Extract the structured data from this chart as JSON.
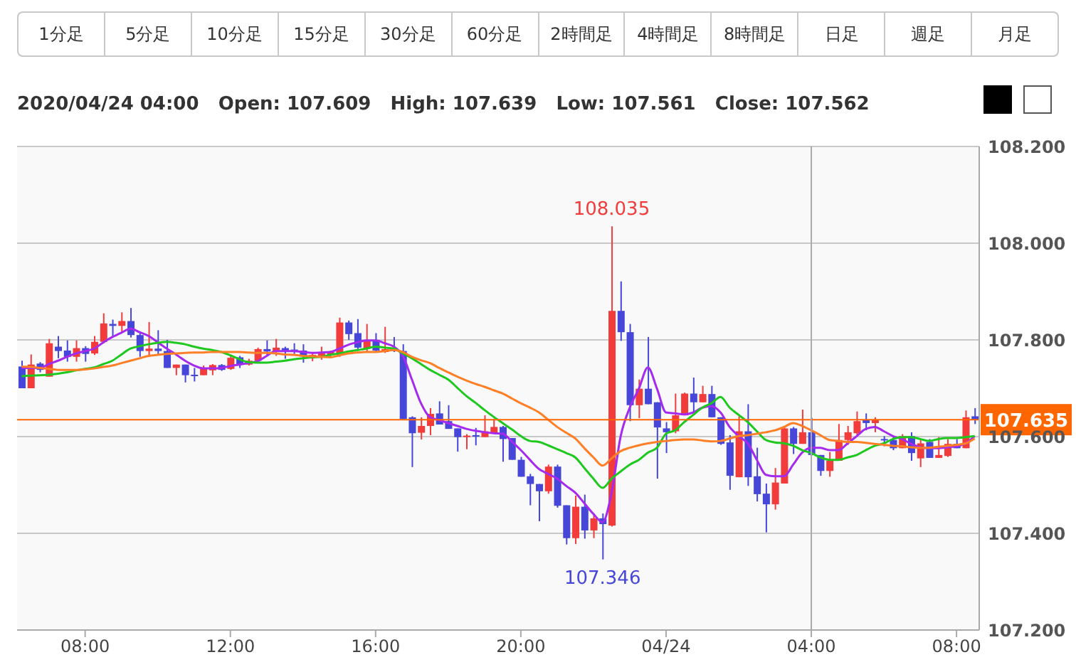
{
  "chart_data": {
    "type": "candlestick",
    "subtitle": "2020/04/24 04:00   Open: 107.609   High: 107.639   Low: 107.561   Close: 107.562",
    "annotations": [
      "1分足",
      "5分足",
      "10分足",
      "15分足",
      "30分足",
      "60分足",
      "2時間足",
      "4時間足",
      "8時間足",
      "日足",
      "週足",
      "月足",
      {
        "text": "108.035",
        "y": 108.035
      },
      {
        "text": "107.346",
        "y": 107.346
      }
    ],
    "categories": [
      null,
      null,
      null,
      null,
      null,
      null,
      null,
      "08:00",
      null,
      null,
      null,
      null,
      null,
      null,
      null,
      null,
      null,
      null,
      null,
      null,
      null,
      null,
      null,
      "12:00",
      null,
      null,
      null,
      null,
      null,
      null,
      null,
      null,
      null,
      null,
      null,
      null,
      null,
      null,
      null,
      "16:00",
      null,
      null,
      null,
      null,
      null,
      null,
      null,
      null,
      null,
      null,
      null,
      null,
      null,
      null,
      null,
      "20:00",
      null,
      null,
      null,
      null,
      null,
      null,
      null,
      null,
      null,
      null,
      null,
      null,
      null,
      null,
      null,
      "04/24",
      null,
      null,
      null,
      null,
      null,
      null,
      null,
      null,
      null,
      null,
      null,
      null,
      null,
      null,
      null,
      "04:00",
      null,
      null,
      null,
      null,
      null,
      null,
      null,
      null,
      null,
      null,
      null,
      null,
      null,
      null,
      null,
      "08:00",
      null,
      null
    ],
    "ohlc": [
      [
        107.745,
        107.757,
        107.7,
        107.7
      ],
      [
        107.7,
        107.77,
        107.7,
        107.749
      ],
      [
        107.751,
        107.754,
        107.733,
        107.738
      ],
      [
        107.724,
        107.802,
        107.724,
        107.793
      ],
      [
        107.786,
        107.808,
        107.762,
        107.777
      ],
      [
        107.778,
        107.799,
        107.755,
        107.765
      ],
      [
        107.765,
        107.799,
        107.755,
        107.783
      ],
      [
        107.783,
        107.787,
        107.755,
        107.771
      ],
      [
        107.772,
        107.808,
        107.769,
        107.796
      ],
      [
        107.796,
        107.855,
        107.793,
        107.834
      ],
      [
        107.833,
        107.842,
        107.808,
        107.829
      ],
      [
        107.829,
        107.857,
        107.816,
        107.839
      ],
      [
        107.839,
        107.866,
        107.805,
        107.81
      ],
      [
        107.81,
        107.814,
        107.765,
        107.777
      ],
      [
        107.777,
        107.837,
        107.765,
        107.782
      ],
      [
        107.782,
        107.82,
        107.769,
        107.777
      ],
      [
        107.777,
        107.8,
        107.742,
        107.742
      ],
      [
        107.742,
        107.749,
        107.727,
        107.749
      ],
      [
        107.749,
        107.749,
        107.712,
        107.727
      ],
      [
        107.728,
        107.742,
        107.714,
        107.726
      ],
      [
        107.727,
        107.747,
        107.727,
        107.741
      ],
      [
        107.737,
        107.75,
        107.727,
        107.748
      ],
      [
        107.748,
        107.75,
        107.736,
        107.738
      ],
      [
        107.74,
        107.767,
        107.738,
        107.763
      ],
      [
        107.764,
        107.767,
        107.742,
        107.749
      ],
      [
        107.749,
        107.761,
        107.747,
        107.757
      ],
      [
        107.757,
        107.784,
        107.757,
        107.781
      ],
      [
        107.781,
        107.799,
        107.769,
        107.776
      ],
      [
        107.776,
        107.802,
        107.767,
        107.784
      ],
      [
        107.783,
        107.786,
        107.761,
        107.778
      ],
      [
        107.78,
        107.793,
        107.771,
        107.776
      ],
      [
        107.778,
        107.791,
        107.753,
        107.766
      ],
      [
        107.766,
        107.773,
        107.756,
        107.769
      ],
      [
        107.767,
        107.786,
        107.759,
        107.772
      ],
      [
        107.769,
        107.778,
        107.764,
        107.775
      ],
      [
        107.769,
        107.846,
        107.765,
        107.836
      ],
      [
        107.836,
        107.84,
        107.8,
        107.812
      ],
      [
        107.814,
        107.843,
        107.781,
        107.784
      ],
      [
        107.782,
        107.833,
        107.775,
        107.8
      ],
      [
        107.8,
        107.814,
        107.775,
        107.778
      ],
      [
        107.775,
        107.827,
        107.773,
        107.781
      ],
      [
        107.781,
        107.806,
        107.775,
        107.777
      ],
      [
        107.777,
        107.791,
        107.636,
        107.636
      ],
      [
        107.64,
        107.642,
        107.537,
        107.607
      ],
      [
        107.608,
        107.64,
        107.594,
        107.622
      ],
      [
        107.622,
        107.659,
        107.603,
        107.647
      ],
      [
        107.648,
        107.673,
        107.625,
        107.625
      ],
      [
        107.632,
        107.665,
        107.616,
        107.616
      ],
      [
        107.617,
        107.617,
        107.569,
        107.599
      ],
      [
        107.599,
        107.605,
        107.574,
        107.602
      ],
      [
        107.603,
        107.618,
        107.582,
        107.6
      ],
      [
        107.599,
        107.644,
        107.599,
        107.611
      ],
      [
        107.608,
        107.637,
        107.608,
        107.62
      ],
      [
        107.62,
        107.622,
        107.548,
        107.595
      ],
      [
        107.597,
        107.597,
        107.552,
        107.552
      ],
      [
        107.552,
        107.558,
        107.517,
        107.517
      ],
      [
        107.518,
        107.523,
        107.458,
        107.502
      ],
      [
        107.502,
        107.502,
        107.425,
        107.487
      ],
      [
        107.487,
        107.542,
        107.482,
        107.538
      ],
      [
        107.538,
        107.542,
        107.453,
        107.457
      ],
      [
        107.458,
        107.458,
        107.377,
        107.39
      ],
      [
        107.39,
        107.478,
        107.378,
        107.455
      ],
      [
        107.455,
        107.48,
        107.389,
        107.406
      ],
      [
        107.406,
        107.441,
        107.39,
        107.431
      ],
      [
        107.431,
        107.441,
        107.346,
        107.419
      ],
      [
        107.416,
        108.035,
        107.414,
        107.86
      ],
      [
        107.86,
        107.921,
        107.798,
        107.816
      ],
      [
        107.816,
        107.833,
        107.632,
        107.665
      ],
      [
        107.665,
        107.718,
        107.638,
        107.699
      ],
      [
        107.699,
        107.806,
        107.667,
        107.667
      ],
      [
        107.671,
        107.671,
        107.513,
        107.619
      ],
      [
        107.617,
        107.63,
        107.566,
        107.609
      ],
      [
        107.611,
        107.689,
        107.607,
        107.644
      ],
      [
        107.644,
        107.691,
        107.644,
        107.689
      ],
      [
        107.689,
        107.722,
        107.648,
        107.671
      ],
      [
        107.671,
        107.705,
        107.671,
        107.688
      ],
      [
        107.688,
        107.705,
        107.64,
        107.64
      ],
      [
        107.64,
        107.64,
        107.583,
        107.585
      ],
      [
        107.588,
        107.603,
        107.49,
        107.519
      ],
      [
        107.516,
        107.642,
        107.516,
        107.611
      ],
      [
        107.611,
        107.667,
        107.498,
        107.516
      ],
      [
        107.518,
        107.577,
        107.466,
        107.481
      ],
      [
        107.482,
        107.503,
        107.402,
        107.46
      ],
      [
        107.46,
        107.535,
        107.449,
        107.505
      ],
      [
        107.503,
        107.62,
        107.503,
        107.617
      ],
      [
        107.617,
        107.62,
        107.564,
        107.585
      ],
      [
        107.585,
        107.656,
        107.585,
        107.609
      ],
      [
        107.609,
        107.639,
        107.561,
        107.562
      ],
      [
        107.562,
        107.562,
        107.519,
        107.529
      ],
      [
        107.529,
        107.568,
        107.517,
        107.55
      ],
      [
        107.55,
        107.626,
        107.55,
        107.593
      ],
      [
        107.593,
        107.622,
        107.583,
        107.609
      ],
      [
        107.607,
        107.652,
        107.601,
        107.632
      ],
      [
        107.634,
        107.648,
        107.613,
        107.628
      ],
      [
        107.628,
        107.64,
        107.609,
        107.634
      ],
      [
        107.595,
        107.601,
        107.58,
        107.593
      ],
      [
        107.593,
        107.601,
        107.572,
        107.576
      ],
      [
        107.576,
        107.605,
        107.576,
        107.601
      ],
      [
        107.601,
        107.609,
        107.55,
        107.566
      ],
      [
        107.555,
        107.595,
        107.537,
        107.586
      ],
      [
        107.589,
        107.595,
        107.556,
        107.556
      ],
      [
        107.556,
        107.599,
        107.556,
        107.562
      ],
      [
        107.56,
        107.595,
        107.558,
        107.585
      ],
      [
        107.585,
        107.595,
        107.576,
        107.576
      ],
      [
        107.576,
        107.654,
        107.576,
        107.64
      ],
      [
        107.642,
        107.659,
        107.626,
        107.635
      ]
    ],
    "colors": [
      "#4646d8",
      "#f23b3b",
      "#4646d8",
      "#f23b3b",
      "#4646d8",
      "#4646d8",
      "#f23b3b",
      "#4646d8",
      "#f23b3b",
      "#f23b3b",
      "#4646d8",
      "#f23b3b",
      "#4646d8",
      "#4646d8",
      "#f23b3b",
      "#4646d8",
      "#4646d8",
      "#f23b3b",
      "#4646d8",
      "#4646d8",
      "#f23b3b",
      "#f23b3b",
      "#4646d8",
      "#f23b3b",
      "#4646d8",
      "#f23b3b",
      "#f23b3b",
      "#4646d8",
      "#f23b3b",
      "#4646d8",
      "#4646d8",
      "#4646d8",
      "#f23b3b",
      "#f23b3b",
      "#f23b3b",
      "#f23b3b",
      "#4646d8",
      "#4646d8",
      "#f23b3b",
      "#4646d8",
      "#f23b3b",
      "#4646d8",
      "#4646d8",
      "#4646d8",
      "#f23b3b",
      "#f23b3b",
      "#4646d8",
      "#4646d8",
      "#4646d8",
      "#f23b3b",
      "#4646d8",
      "#f23b3b",
      "#f23b3b",
      "#4646d8",
      "#4646d8",
      "#4646d8",
      "#4646d8",
      "#4646d8",
      "#f23b3b",
      "#4646d8",
      "#4646d8",
      "#f23b3b",
      "#4646d8",
      "#f23b3b",
      "#4646d8",
      "#f23b3b",
      "#4646d8",
      "#4646d8",
      "#f23b3b",
      "#4646d8",
      "#4646d8",
      "#4646d8",
      "#f23b3b",
      "#f23b3b",
      "#4646d8",
      "#f23b3b",
      "#4646d8",
      "#4646d8",
      "#4646d8",
      "#f23b3b",
      "#4646d8",
      "#4646d8",
      "#4646d8",
      "#f23b3b",
      "#f23b3b",
      "#4646d8",
      "#f23b3b",
      "#4646d8",
      "#4646d8",
      "#f23b3b",
      "#f23b3b",
      "#f23b3b",
      "#f23b3b",
      "#4646d8",
      "#f23b3b",
      "#4646d8",
      "#4646d8",
      "#f23b3b",
      "#4646d8",
      "#f23b3b",
      "#4646d8",
      "#f23b3b",
      "#f23b3b",
      "#4646d8",
      "#f23b3b",
      "#4646d8"
    ],
    "series": [
      {
        "type": "line",
        "color": "#a52aef",
        "values": [
          107.742,
          107.742,
          107.742,
          107.75,
          107.757,
          107.765,
          107.772,
          107.777,
          107.782,
          107.795,
          107.806,
          107.815,
          107.823,
          107.816,
          107.808,
          107.795,
          107.782,
          107.77,
          107.757,
          107.747,
          107.741,
          107.741,
          107.742,
          107.746,
          107.749,
          107.752,
          107.756,
          107.767,
          107.777,
          107.777,
          107.777,
          107.775,
          107.773,
          107.774,
          107.775,
          107.782,
          107.79,
          107.795,
          107.799,
          107.799,
          107.793,
          107.786,
          107.767,
          107.718,
          107.669,
          107.64,
          107.634,
          107.628,
          107.622,
          107.616,
          107.612,
          107.609,
          107.607,
          107.606,
          107.59,
          107.572,
          107.552,
          107.533,
          107.523,
          107.513,
          107.498,
          107.484,
          107.462,
          107.44,
          107.423,
          107.484,
          107.601,
          107.66,
          107.699,
          107.743,
          107.699,
          107.65,
          107.648,
          107.646,
          107.65,
          107.66,
          107.663,
          107.65,
          107.62,
          107.601,
          107.586,
          107.552,
          107.521,
          107.518,
          107.518,
          107.542,
          107.567,
          107.577,
          107.577,
          107.572,
          107.572,
          107.586,
          107.601,
          107.616,
          107.62,
          107.611,
          107.601,
          107.595,
          107.585,
          107.578,
          107.576,
          107.576,
          107.578,
          107.58,
          107.586,
          107.601
        ]
      },
      {
        "type": "line",
        "color": "#1ec81e",
        "values": [
          107.725,
          107.726,
          107.727,
          107.728,
          107.73,
          107.733,
          107.737,
          107.74,
          107.743,
          107.75,
          107.757,
          107.77,
          107.782,
          107.787,
          107.791,
          107.794,
          107.796,
          107.794,
          107.791,
          107.786,
          107.782,
          107.779,
          107.775,
          107.768,
          107.76,
          107.754,
          107.753,
          107.753,
          107.755,
          107.757,
          107.76,
          107.762,
          107.764,
          107.765,
          107.769,
          107.772,
          107.776,
          107.779,
          107.782,
          107.786,
          107.784,
          107.782,
          107.772,
          107.762,
          107.75,
          107.738,
          107.728,
          107.718,
          107.701,
          107.684,
          107.67,
          107.655,
          107.641,
          107.628,
          107.615,
          107.601,
          107.591,
          107.589,
          107.582,
          107.574,
          107.566,
          107.557,
          107.535,
          107.513,
          107.494,
          107.513,
          107.528,
          107.542,
          107.552,
          107.567,
          107.577,
          107.606,
          107.613,
          107.63,
          107.645,
          107.66,
          107.669,
          107.682,
          107.66,
          107.645,
          107.63,
          107.611,
          107.593,
          107.588,
          107.586,
          107.581,
          107.572,
          107.566,
          107.557,
          107.552,
          107.552,
          107.557,
          107.562,
          107.572,
          107.581,
          107.586,
          107.595,
          107.599,
          107.599,
          107.595,
          107.591,
          107.595,
          107.597,
          107.597,
          107.599,
          107.601
        ]
      },
      {
        "type": "line",
        "color": "#ff7f27",
        "values": [
          107.745,
          107.744,
          107.742,
          107.74,
          107.738,
          107.738,
          107.738,
          107.739,
          107.741,
          107.744,
          107.747,
          107.752,
          107.757,
          107.762,
          107.767,
          107.769,
          107.771,
          107.772,
          107.773,
          107.774,
          107.774,
          107.775,
          107.775,
          107.775,
          107.775,
          107.774,
          107.773,
          107.773,
          107.772,
          107.77,
          107.769,
          107.767,
          107.766,
          107.765,
          107.764,
          107.768,
          107.772,
          107.774,
          107.775,
          107.775,
          107.777,
          107.779,
          107.775,
          107.765,
          107.758,
          107.752,
          107.742,
          107.733,
          107.724,
          107.716,
          107.709,
          107.703,
          107.696,
          107.689,
          107.679,
          107.669,
          107.66,
          107.65,
          107.635,
          107.62,
          107.608,
          107.596,
          107.576,
          107.557,
          107.54,
          107.555,
          107.57,
          107.577,
          107.582,
          107.586,
          107.589,
          107.591,
          107.593,
          107.594,
          107.594,
          107.592,
          107.59,
          107.591,
          107.596,
          107.601,
          107.603,
          107.606,
          107.609,
          107.613,
          107.62,
          107.628,
          107.622,
          107.613,
          107.603,
          107.593,
          107.591,
          107.589,
          107.589,
          107.587,
          107.585,
          107.583,
          107.581,
          107.58,
          107.578,
          107.577,
          107.577,
          107.579,
          107.581,
          107.583,
          107.586,
          107.596
        ]
      }
    ],
    "ylim": [
      107.2,
      108.2
    ],
    "yticks": [
      {
        "value": 107.2,
        "label": "107.200"
      },
      {
        "value": 107.4,
        "label": "107.400"
      },
      {
        "value": 107.6,
        "label": "107.600"
      },
      {
        "value": 107.8,
        "label": "107.800"
      },
      {
        "value": 108.0,
        "label": "108.000"
      },
      {
        "value": 108.2,
        "label": "108.200"
      }
    ],
    "ref_lines": [
      {
        "axis": "y",
        "value": 107.635,
        "label": "107.635",
        "color": "#ff6600"
      },
      {
        "axis": "x",
        "value": "04:00",
        "color": "#aaaaaa"
      }
    ],
    "grid": "y"
  }
}
